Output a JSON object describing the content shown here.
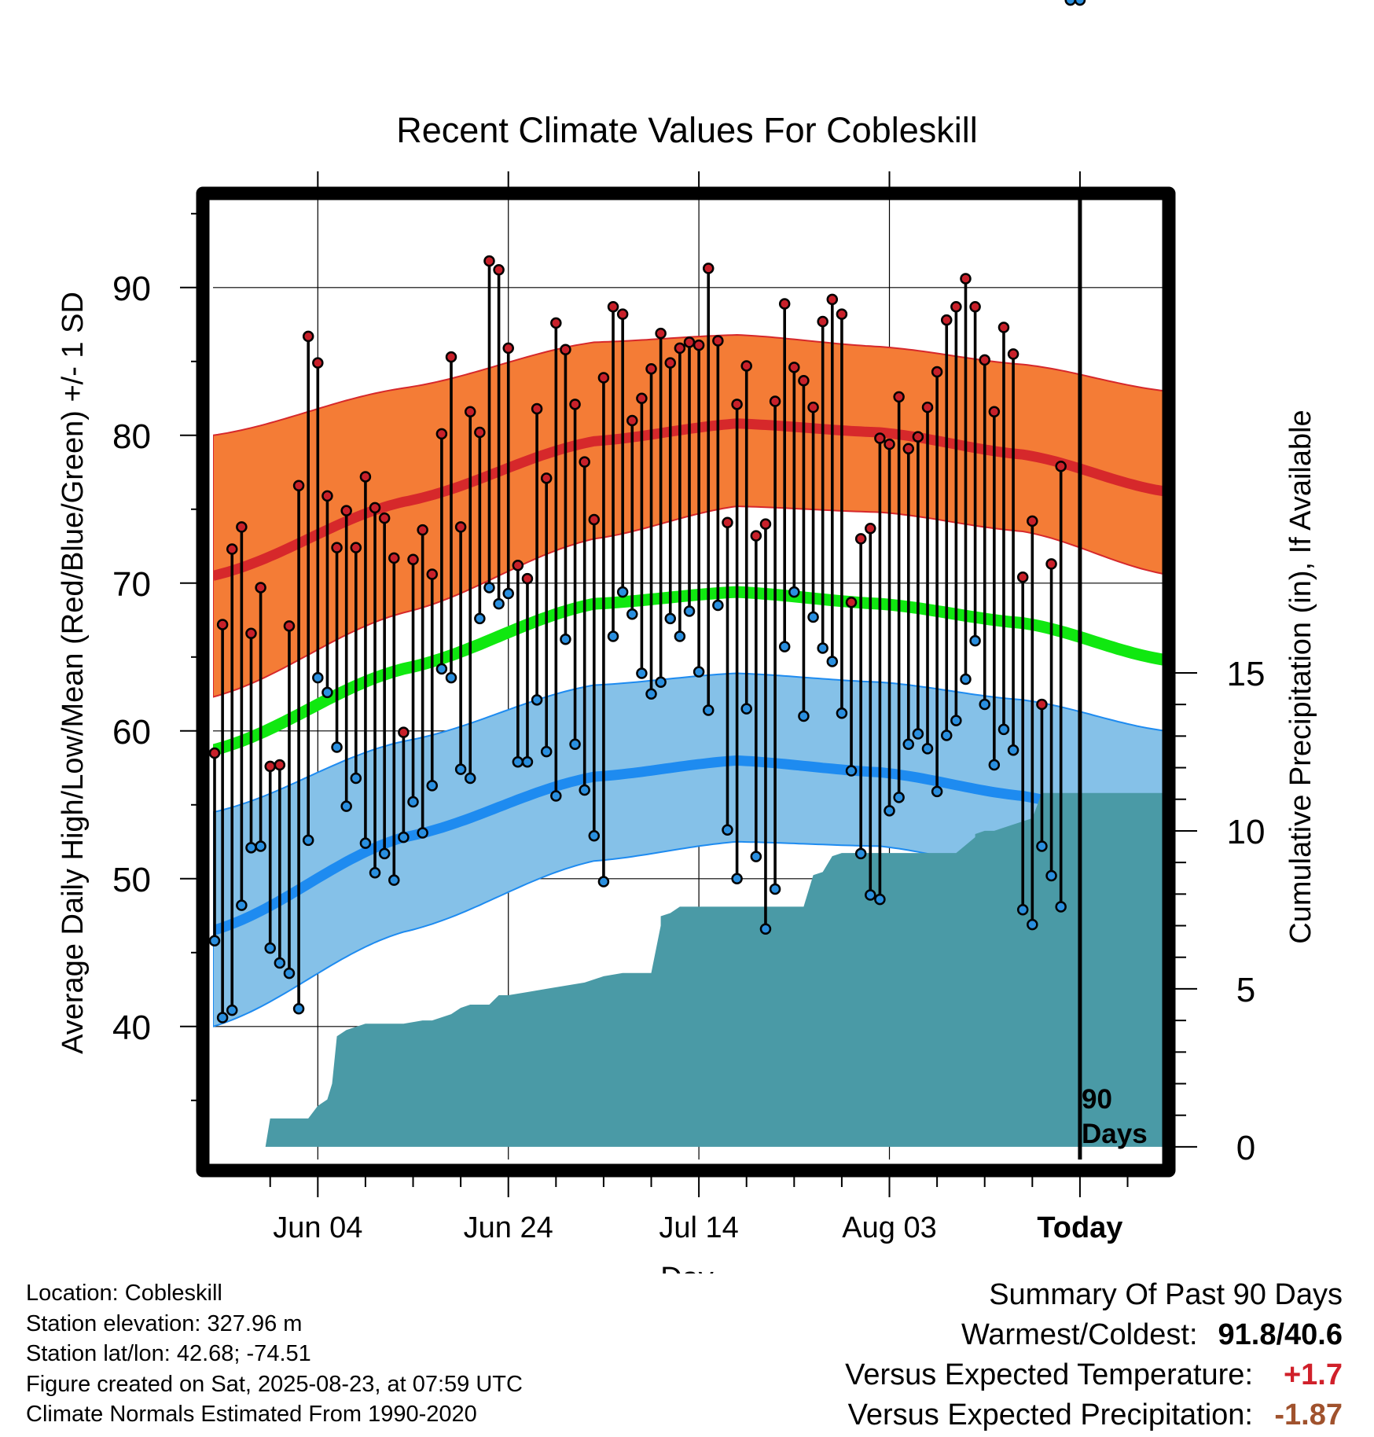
{
  "chart_data": {
    "type": "line",
    "title": "Recent Climate Values For Cobleskill",
    "xlabel": "Day",
    "ylabel": "Average Daily High/Low/Mean (Red/Blue/Green) +/- 1 SD",
    "ylabel_right": "Cumulative Precipitation (in), If Available",
    "x_tick_labels": [
      "Jun 04",
      "Jun 24",
      "Jul 14",
      "Aug 03",
      "Today"
    ],
    "x_tick_days": [
      11,
      31,
      51,
      71,
      91
    ],
    "x_range_days": [
      0,
      100
    ],
    "y_ticks": [
      40,
      50,
      60,
      70,
      80,
      90
    ],
    "ylim": [
      31,
      96
    ],
    "y2_ticks": [
      0,
      5,
      10,
      15
    ],
    "y2lim": [
      -0.4,
      30
    ],
    "today_label_line1": "90",
    "today_label_line2": "Days",
    "colors": {
      "high_band": "#f47c36",
      "high_normal": "#d6282b",
      "low_band": "#85c1e8",
      "low_normal": "#1e8bf0",
      "mean_normal": "#10e810",
      "precip": "#4a9aa6",
      "high_dot": "#c8202a",
      "low_dot": "#2a8fdf"
    },
    "normal_high": {
      "days": [
        0,
        20,
        40,
        55,
        70,
        85,
        100
      ],
      "values": [
        70.5,
        75.5,
        79.6,
        80.8,
        80.2,
        78.7,
        76.2
      ]
    },
    "normal_high_sd_upper": {
      "days": [
        0,
        20,
        40,
        55,
        70,
        85,
        100
      ],
      "values": [
        80.0,
        83.2,
        86.3,
        86.8,
        86.0,
        84.8,
        83.0
      ]
    },
    "normal_high_sd_lower": {
      "days": [
        0,
        20,
        40,
        55,
        70,
        85,
        100
      ],
      "values": [
        62.3,
        68.0,
        73.0,
        75.2,
        74.8,
        73.5,
        70.6
      ]
    },
    "normal_mean": {
      "days": [
        0,
        20,
        40,
        55,
        70,
        85,
        100
      ],
      "values": [
        58.7,
        64.2,
        68.6,
        69.4,
        68.6,
        67.3,
        64.8
      ]
    },
    "normal_low": {
      "days": [
        0,
        20,
        40,
        55,
        70,
        85,
        100
      ],
      "values": [
        46.5,
        52.8,
        56.9,
        58.0,
        57.2,
        55.6,
        53.0
      ]
    },
    "normal_low_sd_upper": {
      "days": [
        0,
        20,
        40,
        55,
        70,
        85,
        100
      ],
      "values": [
        54.5,
        59.3,
        63.1,
        63.9,
        63.3,
        62.1,
        60.0
      ]
    },
    "normal_low_sd_lower": {
      "days": [
        0,
        20,
        40,
        55,
        70,
        85,
        100
      ],
      "values": [
        40.0,
        46.4,
        51.2,
        52.5,
        52.2,
        50.5,
        47.0
      ]
    },
    "daily": {
      "days": [
        0,
        1,
        2,
        3,
        4,
        5,
        6,
        7,
        8,
        9,
        10,
        11,
        12,
        13,
        14,
        15,
        16,
        17,
        18,
        19,
        20,
        21,
        22,
        23,
        24,
        25,
        26,
        27,
        28,
        29,
        30,
        31,
        32,
        33,
        34,
        35,
        36,
        37,
        38,
        39,
        40,
        41,
        42,
        43,
        44,
        45,
        46,
        47,
        48,
        49,
        50,
        51,
        52,
        53,
        54,
        55,
        56,
        57,
        58,
        59,
        60,
        61,
        62,
        63,
        64,
        65,
        66,
        67,
        68,
        69,
        70,
        71,
        72,
        73,
        74,
        75,
        76,
        77,
        78,
        79,
        80,
        81,
        82,
        83,
        84,
        85,
        86,
        87,
        88,
        89,
        90,
        91
      ],
      "highs": [
        58.5,
        67.2,
        72.3,
        73.8,
        66.6,
        69.7,
        57.6,
        57.7,
        67.1,
        76.6,
        86.7,
        84.9,
        75.9,
        72.4,
        74.9,
        72.4,
        77.2,
        75.1,
        74.4,
        71.7,
        59.9,
        71.6,
        73.6,
        70.6,
        80.1,
        85.3,
        73.8,
        81.6,
        80.2,
        91.8,
        91.2,
        85.9,
        71.2,
        70.3,
        81.8,
        77.1,
        87.6,
        85.8,
        82.1,
        78.2,
        74.3,
        83.9,
        88.7,
        88.2,
        81.0,
        82.5,
        84.5,
        86.9,
        84.9,
        85.9,
        86.3,
        86.1,
        91.3,
        86.4,
        74.1,
        82.1,
        84.7,
        73.2,
        74.0,
        82.3,
        88.9,
        84.6,
        83.7,
        81.9,
        87.7,
        89.2,
        88.2,
        68.7,
        73.0,
        73.7,
        79.8,
        79.4,
        82.6,
        79.1,
        79.9,
        81.9,
        84.3,
        87.8,
        88.7,
        90.6,
        88.7,
        85.1,
        81.6,
        87.3,
        85.5,
        70.4,
        74.2,
        61.8,
        71.3,
        77.9
      ],
      "lows": [
        45.8,
        40.6,
        41.1,
        48.2,
        52.1,
        52.2,
        45.3,
        44.3,
        43.6,
        41.2,
        52.6,
        63.6,
        62.6,
        58.9,
        54.9,
        56.8,
        52.4,
        50.4,
        51.7,
        49.9,
        52.8,
        55.2,
        53.1,
        56.3,
        64.2,
        63.6,
        57.4,
        56.8,
        67.6,
        69.7,
        68.6,
        69.3,
        57.9,
        57.9,
        62.1,
        58.6,
        55.6,
        66.2,
        59.1,
        56.0,
        52.9,
        49.8,
        66.4,
        69.4,
        67.9,
        63.9,
        62.5,
        63.3,
        67.6,
        66.4,
        68.1,
        64.0,
        61.4,
        68.5,
        53.3,
        50.0,
        61.5,
        51.5,
        46.6,
        49.3,
        65.7,
        69.4,
        61.0,
        67.7,
        65.6,
        64.7,
        61.2,
        57.3,
        51.7,
        48.9,
        48.6,
        54.6,
        55.5,
        59.1,
        59.8,
        58.8,
        55.9,
        59.7,
        60.7,
        63.5,
        66.1,
        61.8,
        57.7,
        60.1,
        58.7,
        47.9,
        46.9,
        52.2,
        50.2,
        48.1
      ]
    },
    "precip_cumulative": {
      "days": [
        5.5,
        6,
        10,
        10,
        11,
        11,
        12,
        12.5,
        13,
        13,
        14,
        15,
        16,
        18,
        20,
        22,
        23,
        24,
        25,
        26,
        27,
        29,
        30,
        31,
        31,
        33,
        35,
        37,
        39,
        41,
        43,
        45,
        46,
        47,
        47,
        48,
        49,
        50,
        52,
        56,
        58,
        60,
        62,
        63,
        64,
        64,
        65,
        66,
        67,
        68,
        70,
        72,
        74,
        78,
        80,
        80,
        81,
        81,
        82,
        86,
        87,
        87,
        90,
        100
      ],
      "values": [
        0,
        0.9,
        0.9,
        0.9,
        1.3,
        1.3,
        1.5,
        2.0,
        3.5,
        3.5,
        3.7,
        3.8,
        3.9,
        3.9,
        3.9,
        4.0,
        4.0,
        4.1,
        4.2,
        4.4,
        4.5,
        4.5,
        4.8,
        4.8,
        4.8,
        4.9,
        5.0,
        5.1,
        5.2,
        5.4,
        5.5,
        5.5,
        5.5,
        7.0,
        7.3,
        7.4,
        7.6,
        7.6,
        7.6,
        7.6,
        7.6,
        7.6,
        7.6,
        8.6,
        8.7,
        8.7,
        9.2,
        9.3,
        9.3,
        9.3,
        9.3,
        9.3,
        9.3,
        9.3,
        9.8,
        9.9,
        10.0,
        10.0,
        10.0,
        10.4,
        11.2,
        11.2,
        11.2,
        11.2
      ]
    }
  },
  "footer": {
    "location": "Location: Cobleskill",
    "elevation": "Station elevation: 327.96 m",
    "latlon": "Station lat/lon: 42.68; -74.51",
    "created": "Figure created on Sat, 2025-08-23, at 07:59 UTC",
    "normals": "Climate Normals Estimated From 1990-2020"
  },
  "summary": {
    "title": "Summary Of Past 90 Days",
    "warmest_coldest_label": "Warmest/Coldest:",
    "warmest_coldest_value": "91.8/40.6",
    "temp_label": "Versus Expected Temperature:",
    "temp_value": "+1.7",
    "temp_color": "#d0202a",
    "precip_label": "Versus Expected Precipitation:",
    "precip_value": "-1.87",
    "precip_color": "#a0522d"
  }
}
